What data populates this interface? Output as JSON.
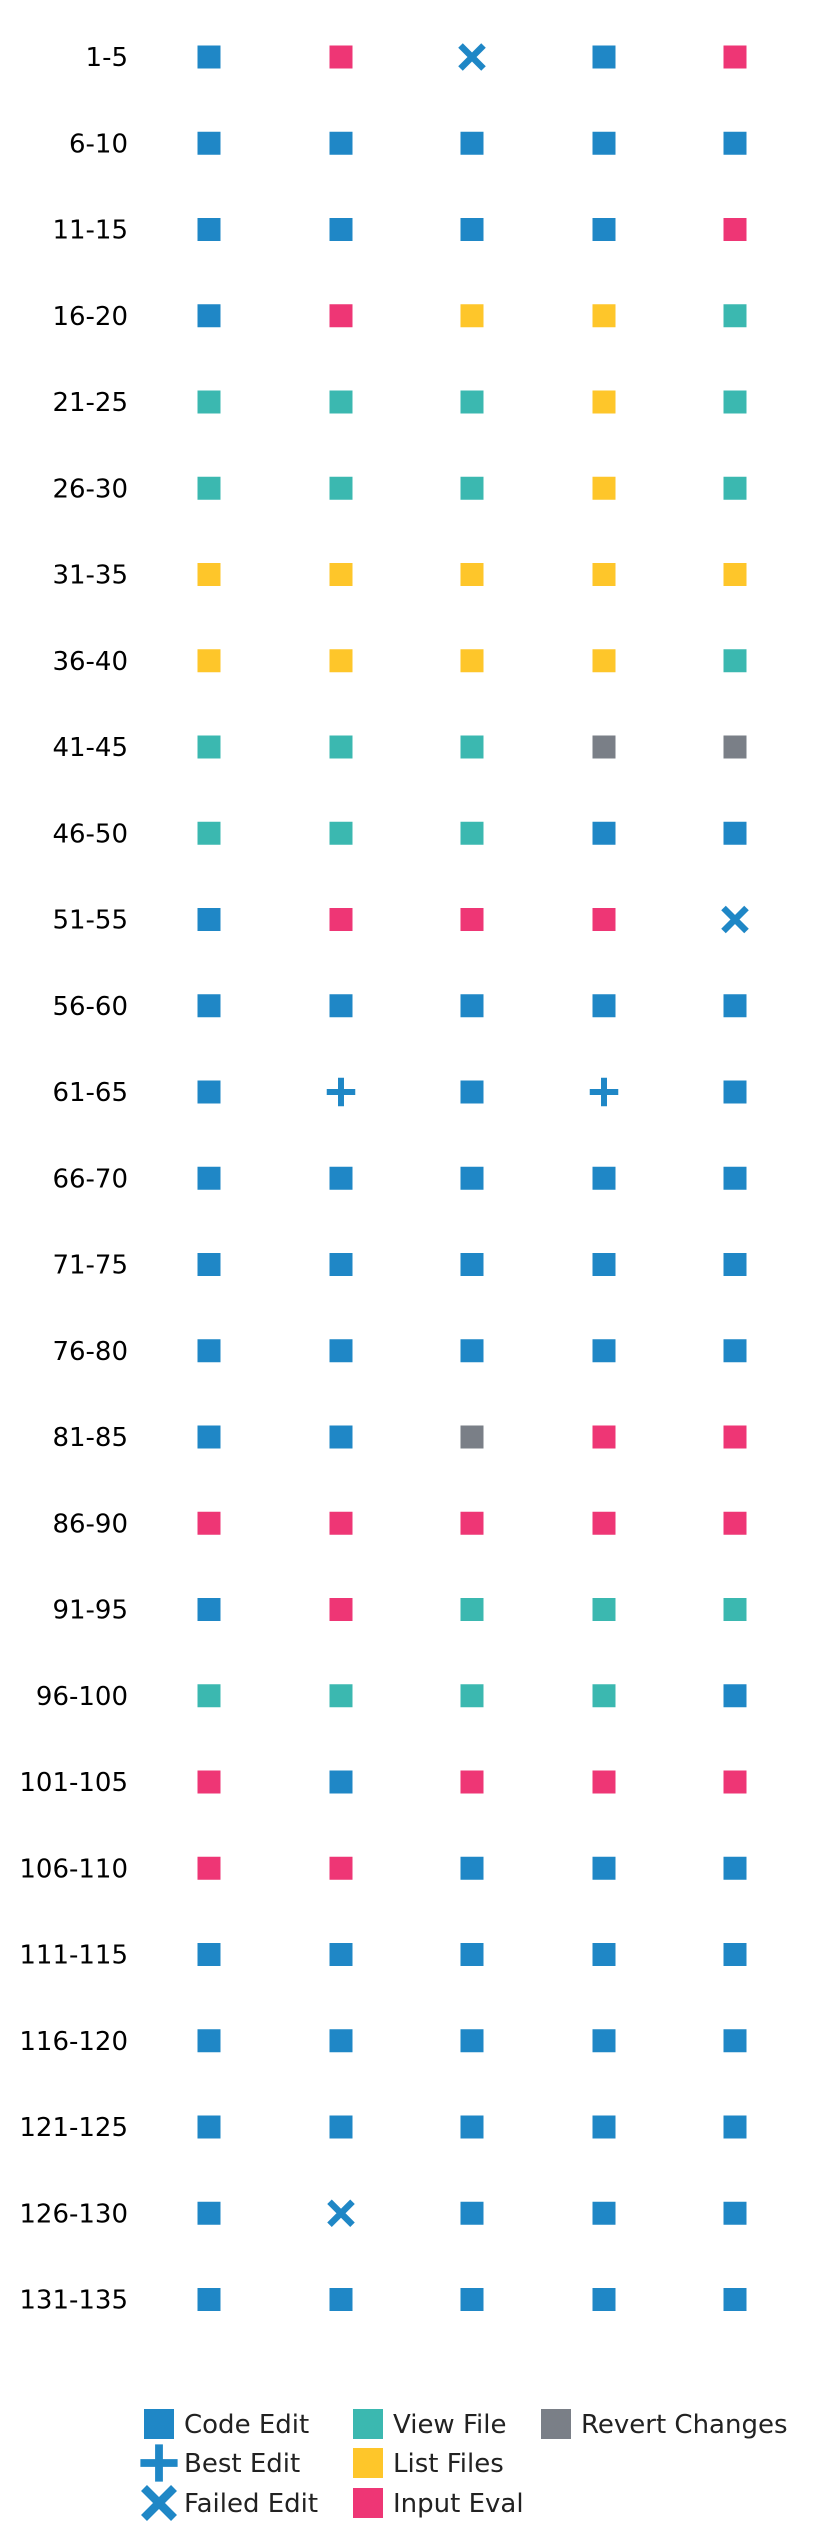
{
  "chart_data": {
    "type": "scatter",
    "title": "",
    "xlabel": "",
    "ylabel": "",
    "grid": false,
    "legend_position": "bottom",
    "columns": 5,
    "rows": [
      {
        "label": "1-5",
        "steps": [
          "code_edit",
          "input_eval",
          "failed_edit",
          "code_edit",
          "input_eval"
        ]
      },
      {
        "label": "6-10",
        "steps": [
          "code_edit",
          "code_edit",
          "code_edit",
          "code_edit",
          "code_edit"
        ]
      },
      {
        "label": "11-15",
        "steps": [
          "code_edit",
          "code_edit",
          "code_edit",
          "code_edit",
          "input_eval"
        ]
      },
      {
        "label": "16-20",
        "steps": [
          "code_edit",
          "input_eval",
          "list_files",
          "list_files",
          "view_file"
        ]
      },
      {
        "label": "21-25",
        "steps": [
          "view_file",
          "view_file",
          "view_file",
          "list_files",
          "view_file"
        ]
      },
      {
        "label": "26-30",
        "steps": [
          "view_file",
          "view_file",
          "view_file",
          "list_files",
          "view_file"
        ]
      },
      {
        "label": "31-35",
        "steps": [
          "list_files",
          "list_files",
          "list_files",
          "list_files",
          "list_files"
        ]
      },
      {
        "label": "36-40",
        "steps": [
          "list_files",
          "list_files",
          "list_files",
          "list_files",
          "view_file"
        ]
      },
      {
        "label": "41-45",
        "steps": [
          "view_file",
          "view_file",
          "view_file",
          "revert_changes",
          "revert_changes"
        ]
      },
      {
        "label": "46-50",
        "steps": [
          "view_file",
          "view_file",
          "view_file",
          "code_edit",
          "code_edit"
        ]
      },
      {
        "label": "51-55",
        "steps": [
          "code_edit",
          "input_eval",
          "input_eval",
          "input_eval",
          "failed_edit"
        ]
      },
      {
        "label": "56-60",
        "steps": [
          "code_edit",
          "code_edit",
          "code_edit",
          "code_edit",
          "code_edit"
        ]
      },
      {
        "label": "61-65",
        "steps": [
          "code_edit",
          "best_edit",
          "code_edit",
          "best_edit",
          "code_edit"
        ]
      },
      {
        "label": "66-70",
        "steps": [
          "code_edit",
          "code_edit",
          "code_edit",
          "code_edit",
          "code_edit"
        ]
      },
      {
        "label": "71-75",
        "steps": [
          "code_edit",
          "code_edit",
          "code_edit",
          "code_edit",
          "code_edit"
        ]
      },
      {
        "label": "76-80",
        "steps": [
          "code_edit",
          "code_edit",
          "code_edit",
          "code_edit",
          "code_edit"
        ]
      },
      {
        "label": "81-85",
        "steps": [
          "code_edit",
          "code_edit",
          "revert_changes",
          "input_eval",
          "input_eval"
        ]
      },
      {
        "label": "86-90",
        "steps": [
          "input_eval",
          "input_eval",
          "input_eval",
          "input_eval",
          "input_eval"
        ]
      },
      {
        "label": "91-95",
        "steps": [
          "code_edit",
          "input_eval",
          "view_file",
          "view_file",
          "view_file"
        ]
      },
      {
        "label": "96-100",
        "steps": [
          "view_file",
          "view_file",
          "view_file",
          "view_file",
          "code_edit"
        ]
      },
      {
        "label": "101-105",
        "steps": [
          "input_eval",
          "code_edit",
          "input_eval",
          "input_eval",
          "input_eval"
        ]
      },
      {
        "label": "106-110",
        "steps": [
          "input_eval",
          "input_eval",
          "code_edit",
          "code_edit",
          "code_edit"
        ]
      },
      {
        "label": "111-115",
        "steps": [
          "code_edit",
          "code_edit",
          "code_edit",
          "code_edit",
          "code_edit"
        ]
      },
      {
        "label": "116-120",
        "steps": [
          "code_edit",
          "code_edit",
          "code_edit",
          "code_edit",
          "code_edit"
        ]
      },
      {
        "label": "121-125",
        "steps": [
          "code_edit",
          "code_edit",
          "code_edit",
          "code_edit",
          "code_edit"
        ]
      },
      {
        "label": "126-130",
        "steps": [
          "code_edit",
          "failed_edit",
          "code_edit",
          "code_edit",
          "code_edit"
        ]
      },
      {
        "label": "131-135",
        "steps": [
          "code_edit",
          "code_edit",
          "code_edit",
          "code_edit",
          "code_edit"
        ]
      }
    ],
    "legend": [
      {
        "key": "code_edit",
        "label": "Code Edit",
        "marker": "square",
        "color": "#1f87c6"
      },
      {
        "key": "best_edit",
        "label": "Best Edit",
        "marker": "plus",
        "color": "#1f87c6"
      },
      {
        "key": "failed_edit",
        "label": "Failed Edit",
        "marker": "cross",
        "color": "#1f87c6"
      },
      {
        "key": "view_file",
        "label": "View File",
        "marker": "square",
        "color": "#3bb8b0"
      },
      {
        "key": "list_files",
        "label": "List Files",
        "marker": "square",
        "color": "#fec62a"
      },
      {
        "key": "input_eval",
        "label": "Input Eval",
        "marker": "square",
        "color": "#ee3675"
      },
      {
        "key": "revert_changes",
        "label": "Revert Changes",
        "marker": "square",
        "color": "#7a7f87"
      }
    ]
  }
}
